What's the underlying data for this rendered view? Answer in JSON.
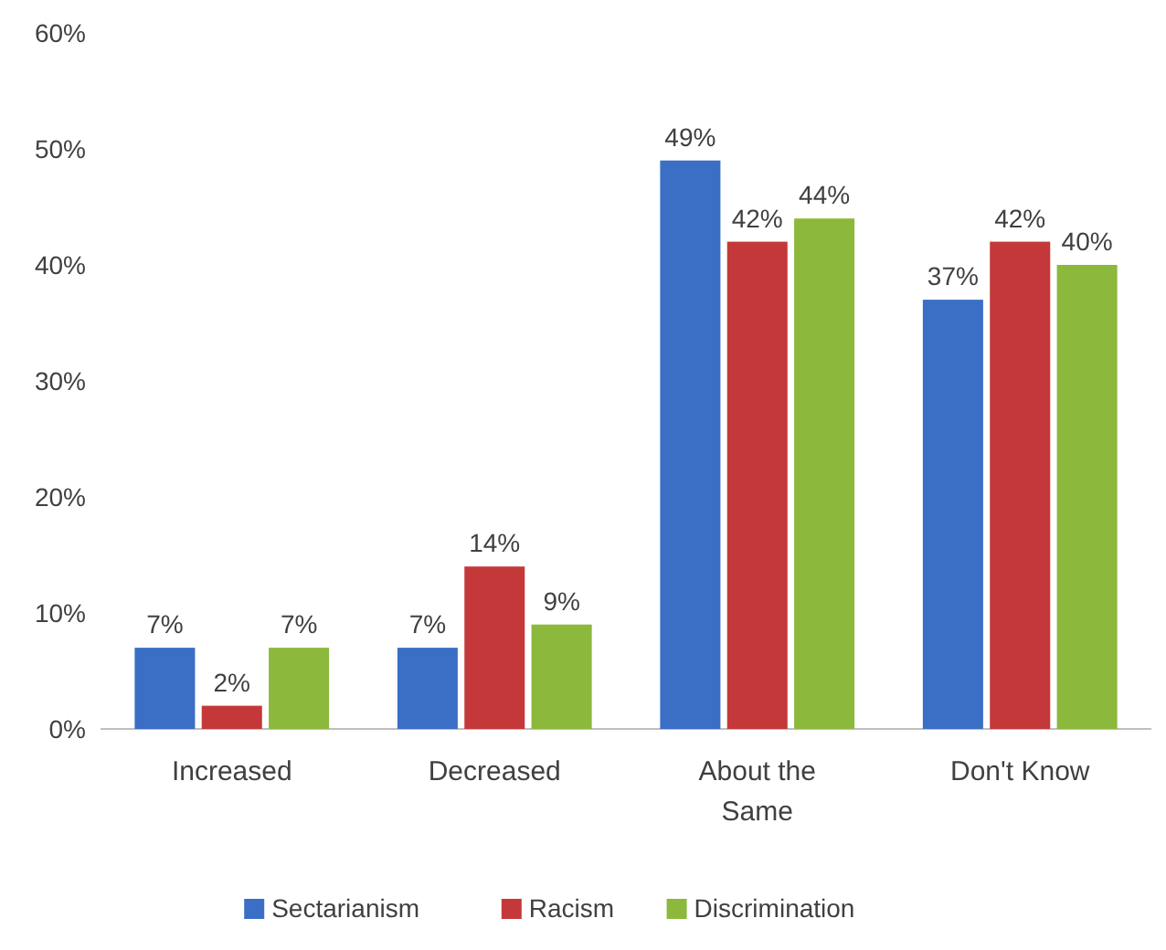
{
  "chart_data": {
    "type": "bar",
    "categories": [
      "Increased",
      "Decreased",
      "About the Same",
      "Don't Know"
    ],
    "series": [
      {
        "name": "Sectarianism",
        "color": "#3b6fc6",
        "values": [
          7,
          7,
          49,
          37
        ],
        "value_labels": [
          "7%",
          "7%",
          "49%",
          "37%"
        ]
      },
      {
        "name": "Racism",
        "color": "#c4383a",
        "values": [
          2,
          14,
          42,
          42
        ],
        "value_labels": [
          "2%",
          "14%",
          "42%",
          "42%"
        ]
      },
      {
        "name": "Discrimination",
        "color": "#8cb83c",
        "values": [
          7,
          9,
          44,
          40
        ],
        "value_labels": [
          "7%",
          "9%",
          "44%",
          "40%"
        ]
      }
    ],
    "ylim": [
      0,
      60
    ],
    "yticks": [
      {
        "value": 0,
        "label": "0%"
      },
      {
        "value": 10,
        "label": "10%"
      },
      {
        "value": 20,
        "label": "20%"
      },
      {
        "value": 30,
        "label": "30%"
      },
      {
        "value": 40,
        "label": "40%"
      },
      {
        "value": 50,
        "label": "50%"
      },
      {
        "value": 60,
        "label": "60%"
      }
    ],
    "grid": false,
    "legend": "bottom"
  }
}
